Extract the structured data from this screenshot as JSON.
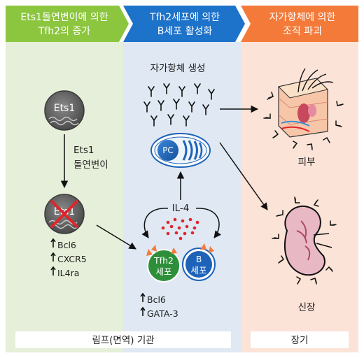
{
  "colors": {
    "green_header": "#8cc63f",
    "blue_header": "#1d72c9",
    "orange_header": "#f47a3a",
    "green_bg": "#e6efd9",
    "blue_bg": "#dfe8f3",
    "orange_bg": "#fbe3d7",
    "pc_blue": "#1d63b8",
    "tfh2_green": "#2e8f3a",
    "b_blue": "#1d63b8",
    "red_dot": "#e0242c",
    "ets1_gray": "#6b6b6b"
  },
  "panels": {
    "left": {
      "header_line1": "Ets1돌연변이에 의한",
      "header_line2": "Tfh2의 증가",
      "ets1_label": "Ets1",
      "mutation_line1": "Ets1",
      "mutation_line2": "돌연변이",
      "mutant_label": "Ets1",
      "markers": [
        "Bcl6",
        "CXCR5",
        "IL4ra"
      ]
    },
    "middle": {
      "header_line1": "Tfh2세포에 의한",
      "header_line2": "B세포 활성화",
      "antibody_label": "자가항체 생성",
      "pc_label": "PC",
      "il4_label": "IL-4",
      "tfh2_line1": "Tfh2",
      "tfh2_line2": "세포",
      "b_line1": "B",
      "b_line2": "세포",
      "markers": [
        "Bcl6",
        "GATA-3"
      ]
    },
    "right": {
      "header_line1": "자가항체에 의한",
      "header_line2": "조직 파괴",
      "skin_label": "피부",
      "kidney_label": "신장"
    }
  },
  "footer": {
    "lymph_label": "림프(면역) 기관",
    "organ_label": "장기"
  },
  "icons": [
    "ets1-cell-icon",
    "mutant-ets1-cell-icon",
    "antibody-icon",
    "plasma-cell-icon",
    "tfh2-cell-icon",
    "b-cell-icon",
    "skin-tissue-icon",
    "kidney-icon"
  ]
}
